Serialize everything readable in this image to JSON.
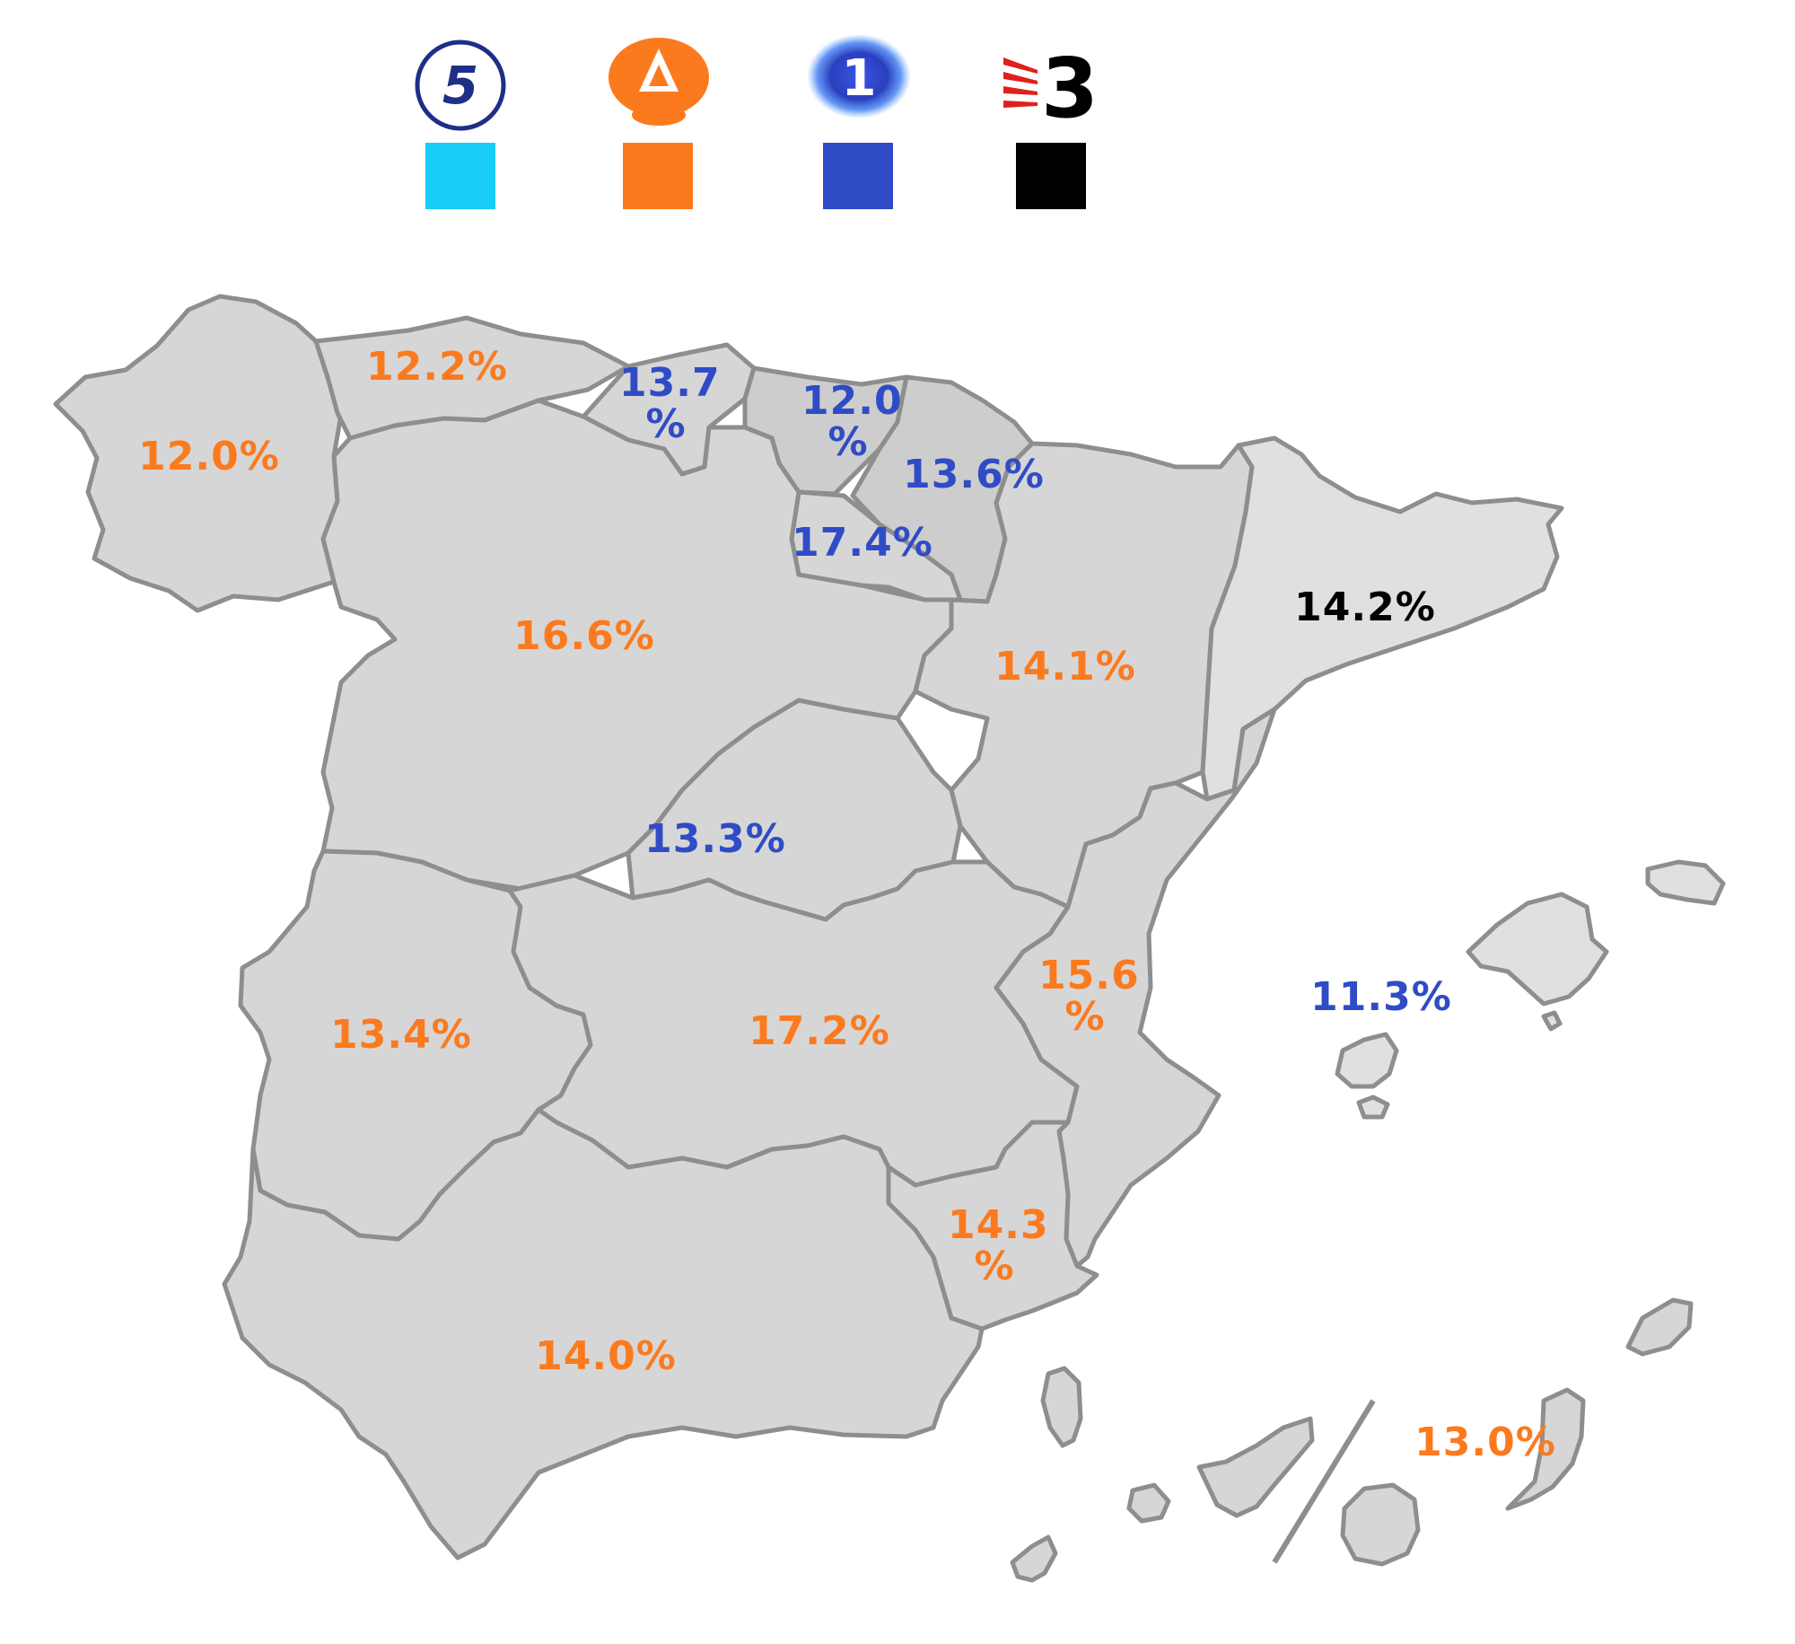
{
  "legend": [
    {
      "channel": "5",
      "color": "#17cdf7",
      "logo_icon": "telecinco-logo-icon"
    },
    {
      "channel": "",
      "color": "#fc7a1e",
      "logo_icon": "antena3-logo-icon"
    },
    {
      "channel": "1",
      "color": "#2f4cc6",
      "logo_icon": "la1-logo-icon"
    },
    {
      "channel": "3",
      "color": "#000000",
      "logo_icon": "tv3-logo-icon"
    }
  ],
  "regions": [
    {
      "name": "Galicia",
      "value": "12.0%",
      "color": "#fc7a1e"
    },
    {
      "name": "Asturias",
      "value": "12.2%",
      "color": "#fc7a1e"
    },
    {
      "name": "Cantabria",
      "value": "13.7 %",
      "color": "#2f4cc6"
    },
    {
      "name": "País Vasco",
      "value": "12.0 %",
      "color": "#2f4cc6"
    },
    {
      "name": "Navarra",
      "value": "13.6%",
      "color": "#2f4cc6"
    },
    {
      "name": "La Rioja",
      "value": "17.4%",
      "color": "#2f4cc6"
    },
    {
      "name": "Castilla y León",
      "value": "16.6%",
      "color": "#fc7a1e"
    },
    {
      "name": "Aragón",
      "value": "14.1%",
      "color": "#fc7a1e"
    },
    {
      "name": "Cataluña",
      "value": "14.2%",
      "color": "#000000"
    },
    {
      "name": "Madrid",
      "value": "13.3%",
      "color": "#2f4cc6"
    },
    {
      "name": "Extremadura",
      "value": "13.4%",
      "color": "#fc7a1e"
    },
    {
      "name": "Castilla-La Mancha",
      "value": "17.2%",
      "color": "#fc7a1e"
    },
    {
      "name": "Comunidad Valenciana",
      "value": "15.6 %",
      "color": "#fc7a1e"
    },
    {
      "name": "Murcia",
      "value": "14.3 %",
      "color": "#fc7a1e"
    },
    {
      "name": "Andalucía",
      "value": "14.0%",
      "color": "#fc7a1e"
    },
    {
      "name": "Islas Baleares",
      "value": "11.3%",
      "color": "#2f4cc6"
    },
    {
      "name": "Canarias",
      "value": "13.0%",
      "color": "#fc7a1e"
    }
  ]
}
